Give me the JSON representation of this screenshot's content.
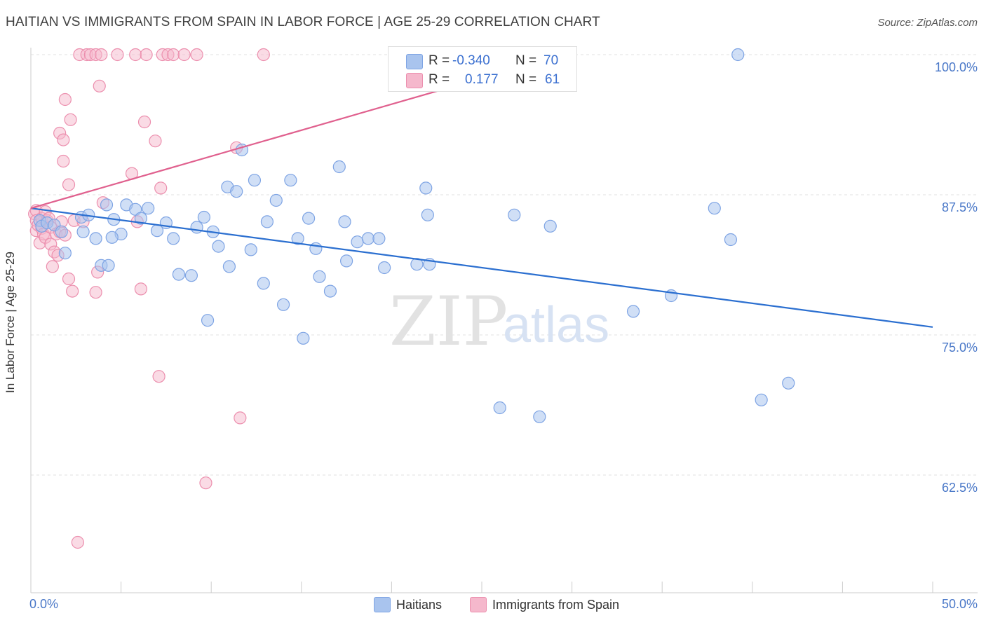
{
  "title": "HAITIAN VS IMMIGRANTS FROM SPAIN IN LABOR FORCE | AGE 25-29 CORRELATION CHART",
  "source": "Source: ZipAtlas.com",
  "watermark": {
    "zip": "ZIP",
    "atlas": "atlas"
  },
  "legend": {
    "rows": [
      {
        "r_label": "R =",
        "r_value": "-0.340",
        "n_label": "N =",
        "n_value": "70",
        "color": "#a9c4ee"
      },
      {
        "r_label": "R =",
        "r_value": "0.177",
        "n_label": "N =",
        "n_value": "61",
        "color": "#f5b8cc"
      }
    ]
  },
  "bottom_legend": [
    {
      "label": "Haitians",
      "color": "#a9c4ee"
    },
    {
      "label": "Immigrants from Spain",
      "color": "#f5b8cc"
    }
  ],
  "colors": {
    "blue_fill": "#a9c4ee",
    "blue_stroke": "#7ea4e4",
    "blue_line": "#2b6fd0",
    "pink_fill": "#f5b8cc",
    "pink_stroke": "#ec8fae",
    "pink_line": "#e0608e",
    "tick_text": "#4a78c8",
    "grid": "#e2e2e2"
  },
  "chart_data": {
    "type": "scatter",
    "ylabel": "In Labor Force | Age 25-29",
    "xlabel": "",
    "xlim": [
      0,
      50
    ],
    "ylim": [
      52,
      100
    ],
    "x_tick_labels": [
      "0.0%",
      "50.0%"
    ],
    "y_ticks": [
      62.5,
      75.0,
      87.5,
      100.0
    ],
    "y_tick_labels": [
      "62.5%",
      "75.0%",
      "87.5%",
      "100.0%"
    ],
    "grid": true,
    "legend_position": "top-center",
    "series": [
      {
        "name": "Haitians",
        "r": -0.34,
        "n": 70,
        "trend": {
          "x": [
            0,
            50
          ],
          "y": [
            86.3,
            75.7
          ]
        },
        "points": [
          [
            0.5,
            85.2
          ],
          [
            0.6,
            84.7
          ],
          [
            0.9,
            85.0
          ],
          [
            1.3,
            84.8
          ],
          [
            1.7,
            84.2
          ],
          [
            1.9,
            82.3
          ],
          [
            2.8,
            85.5
          ],
          [
            2.9,
            84.2
          ],
          [
            3.2,
            85.7
          ],
          [
            3.6,
            83.6
          ],
          [
            3.9,
            81.2
          ],
          [
            4.2,
            86.6
          ],
          [
            4.3,
            81.2
          ],
          [
            4.6,
            85.3
          ],
          [
            5.0,
            84.0
          ],
          [
            5.3,
            86.6
          ],
          [
            5.8,
            86.2
          ],
          [
            6.1,
            85.4
          ],
          [
            6.5,
            86.3
          ],
          [
            7.0,
            84.3
          ],
          [
            7.5,
            85.0
          ],
          [
            7.9,
            83.6
          ],
          [
            8.2,
            80.4
          ],
          [
            8.9,
            80.3
          ],
          [
            9.2,
            84.6
          ],
          [
            9.6,
            85.5
          ],
          [
            9.8,
            76.3
          ],
          [
            10.1,
            84.2
          ],
          [
            10.4,
            82.9
          ],
          [
            10.9,
            88.2
          ],
          [
            11.0,
            81.1
          ],
          [
            11.4,
            87.8
          ],
          [
            11.7,
            91.5
          ],
          [
            12.2,
            82.6
          ],
          [
            12.4,
            88.8
          ],
          [
            12.9,
            79.6
          ],
          [
            13.1,
            85.1
          ],
          [
            13.6,
            87.0
          ],
          [
            14.0,
            77.7
          ],
          [
            14.4,
            88.8
          ],
          [
            14.8,
            83.6
          ],
          [
            15.1,
            74.7
          ],
          [
            15.4,
            85.4
          ],
          [
            15.8,
            82.7
          ],
          [
            16.0,
            80.2
          ],
          [
            16.6,
            78.9
          ],
          [
            17.1,
            90.0
          ],
          [
            17.4,
            85.1
          ],
          [
            17.5,
            81.6
          ],
          [
            18.1,
            83.3
          ],
          [
            18.7,
            83.6
          ],
          [
            19.3,
            83.6
          ],
          [
            19.6,
            81.0
          ],
          [
            21.4,
            81.3
          ],
          [
            21.9,
            88.1
          ],
          [
            22.0,
            85.7
          ],
          [
            22.1,
            81.3
          ],
          [
            24.2,
            100.0
          ],
          [
            26.0,
            68.5
          ],
          [
            26.8,
            85.7
          ],
          [
            28.2,
            67.7
          ],
          [
            28.8,
            84.7
          ],
          [
            33.4,
            77.1
          ],
          [
            35.5,
            78.5
          ],
          [
            37.9,
            86.3
          ],
          [
            38.8,
            83.5
          ],
          [
            39.2,
            100.0
          ],
          [
            40.5,
            69.2
          ],
          [
            42.0,
            70.7
          ],
          [
            4.5,
            83.7
          ]
        ]
      },
      {
        "name": "Immigrants from Spain",
        "r": 0.177,
        "n": 61,
        "trend": {
          "x": [
            0,
            25
          ],
          "y": [
            86.3,
            97.9
          ]
        },
        "points": [
          [
            0.2,
            85.8
          ],
          [
            0.3,
            86.1
          ],
          [
            0.3,
            85.2
          ],
          [
            0.3,
            84.3
          ],
          [
            0.4,
            84.8
          ],
          [
            0.5,
            83.2
          ],
          [
            0.6,
            85.4
          ],
          [
            0.6,
            84.5
          ],
          [
            0.7,
            84.0
          ],
          [
            0.8,
            86.0
          ],
          [
            0.8,
            83.7
          ],
          [
            0.9,
            85.2
          ],
          [
            1.0,
            85.4
          ],
          [
            1.1,
            84.6
          ],
          [
            1.1,
            83.1
          ],
          [
            1.2,
            81.1
          ],
          [
            1.3,
            82.4
          ],
          [
            1.4,
            84.0
          ],
          [
            1.5,
            82.1
          ],
          [
            1.6,
            84.2
          ],
          [
            1.6,
            93.0
          ],
          [
            1.7,
            85.1
          ],
          [
            1.8,
            92.4
          ],
          [
            1.8,
            90.5
          ],
          [
            1.9,
            96.0
          ],
          [
            2.1,
            80.0
          ],
          [
            2.1,
            88.4
          ],
          [
            2.2,
            94.2
          ],
          [
            2.3,
            78.9
          ],
          [
            2.4,
            85.2
          ],
          [
            2.7,
            100.0
          ],
          [
            2.9,
            85.1
          ],
          [
            3.1,
            100.0
          ],
          [
            3.3,
            100.0
          ],
          [
            3.6,
            100.0
          ],
          [
            3.6,
            78.8
          ],
          [
            3.7,
            80.6
          ],
          [
            3.8,
            97.2
          ],
          [
            3.9,
            100.0
          ],
          [
            4.0,
            86.8
          ],
          [
            4.8,
            100.0
          ],
          [
            5.6,
            89.4
          ],
          [
            5.8,
            100.0
          ],
          [
            5.9,
            85.1
          ],
          [
            6.1,
            79.1
          ],
          [
            6.3,
            94.0
          ],
          [
            6.4,
            100.0
          ],
          [
            6.9,
            92.3
          ],
          [
            7.1,
            71.3
          ],
          [
            7.2,
            88.1
          ],
          [
            7.3,
            100.0
          ],
          [
            7.6,
            100.0
          ],
          [
            7.9,
            100.0
          ],
          [
            9.2,
            100.0
          ],
          [
            9.7,
            61.8
          ],
          [
            11.4,
            91.7
          ],
          [
            11.6,
            67.6
          ],
          [
            12.9,
            100.0
          ],
          [
            8.5,
            100.0
          ],
          [
            2.6,
            56.5
          ],
          [
            1.9,
            83.9
          ]
        ]
      }
    ]
  }
}
